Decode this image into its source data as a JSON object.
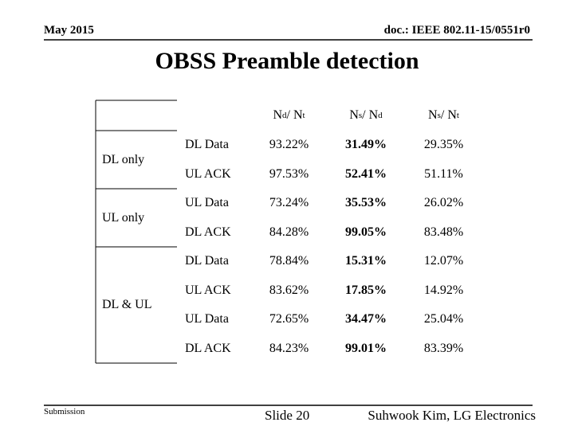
{
  "header": {
    "date": "May 2015",
    "doc": "doc.: IEEE 802.11-15/0551r0"
  },
  "title": "OBSS Preamble detection",
  "table": {
    "columns": [
      [
        {
          "text": "N"
        },
        {
          "sub": "d"
        },
        {
          "text": " / N"
        },
        {
          "sub": "t"
        }
      ],
      [
        {
          "text": "N"
        },
        {
          "sub": "s"
        },
        {
          "text": " / N"
        },
        {
          "sub": "d"
        }
      ],
      [
        {
          "text": "N"
        },
        {
          "sub": "s"
        },
        {
          "text": " / N"
        },
        {
          "sub": "t"
        }
      ]
    ],
    "groups": [
      {
        "label": "DL only",
        "rows": [
          [
            "DL Data",
            "93.22%",
            "31.49%",
            "29.35%"
          ],
          [
            "UL ACK",
            "97.53%",
            "52.41%",
            "51.11%"
          ]
        ]
      },
      {
        "label": "UL only",
        "rows": [
          [
            "UL Data",
            "73.24%",
            "35.53%",
            "26.02%"
          ],
          [
            "DL ACK",
            "84.28%",
            "99.05%",
            "83.48%"
          ]
        ]
      },
      {
        "label": "DL & UL",
        "rows": [
          [
            "DL Data",
            "78.84%",
            "15.31%",
            "12.07%"
          ],
          [
            "UL ACK",
            "83.62%",
            "17.85%",
            "14.92%"
          ],
          [
            "UL Data",
            "72.65%",
            "34.47%",
            "25.04%"
          ],
          [
            "DL ACK",
            "84.23%",
            "99.01%",
            "83.39%"
          ]
        ]
      }
    ]
  },
  "footer": {
    "left": "Submission",
    "center": "Slide 20",
    "right": "Suhwook Kim, LG Electronics"
  }
}
